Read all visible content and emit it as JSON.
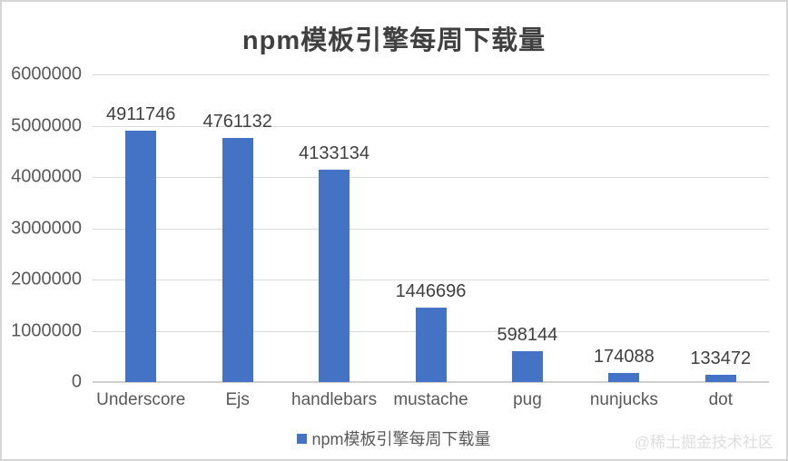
{
  "chart_data": {
    "type": "bar",
    "title": "npm模板引擎每周下载量",
    "categories": [
      "Underscore",
      "Ejs",
      "handlebars",
      "mustache",
      "pug",
      "nunjucks",
      "dot"
    ],
    "values": [
      4911746,
      4761132,
      4133134,
      1446696,
      598144,
      174088,
      133472
    ],
    "data_labels": [
      4911746,
      4761132,
      4133134,
      1446696,
      598144,
      174088,
      133472
    ],
    "yticks": [
      0,
      1000000,
      2000000,
      3000000,
      4000000,
      5000000,
      6000000
    ],
    "ylim": [
      0,
      6000000
    ],
    "xlabel": "",
    "ylabel": "",
    "grid": true,
    "legend": [
      "npm模板引擎每周下载量"
    ],
    "legend_position": "bottom",
    "bar_color": "#4472C4"
  },
  "colors": {
    "bar": "#4472C4",
    "title_text": "#404040",
    "axis_text": "#595959",
    "gridline": "#d9d9d9",
    "frame_border": "#d6d6d6",
    "watermark_text": "#dedede"
  },
  "watermark": "@稀土掘金技术社区"
}
